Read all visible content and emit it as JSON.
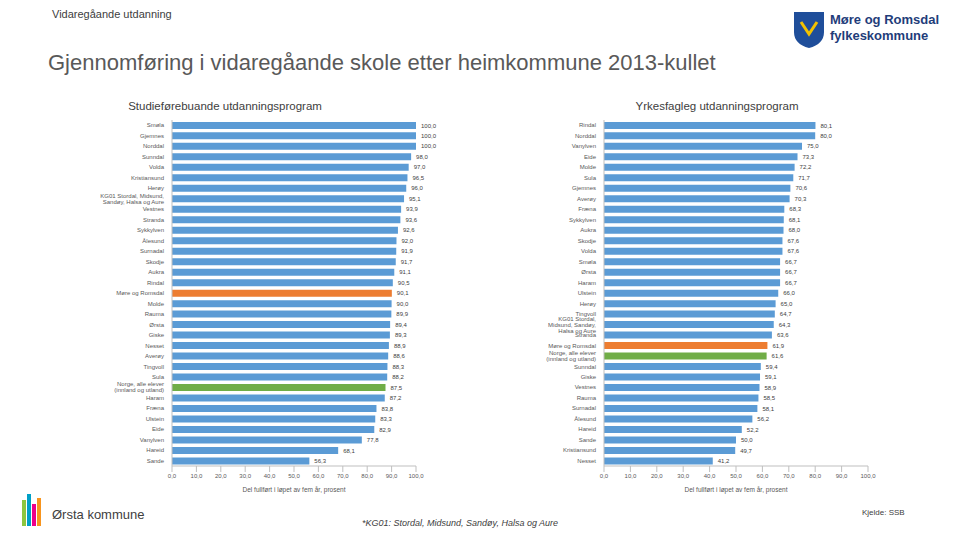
{
  "texts": {
    "section": "Vidaregåande utdanning",
    "title": "Gjennomføring i vidaregåande skole etter heimkommune 2013-kullet",
    "logo": [
      "Møre og Romsdal",
      "fylkeskommune"
    ],
    "municipality": "Ørsta kommune",
    "footnote": "*KG01: Stordal, Midsund, Sandøy, Halsa og Aure",
    "source": "Kjelde: SSB"
  },
  "chart_data": [
    {
      "type": "bar",
      "orientation": "horizontal",
      "title": "Studieførebuande utdanningsprogram",
      "x_label": "Del fullført i løpet av fem år, prosent",
      "data_labels": true,
      "grid": false,
      "categories": [
        "Smøla",
        "Gjemnes",
        "Norddal",
        "Sunndal",
        "Volda",
        "Kristiansund",
        "Herøy",
        "KG01 Stordal, Midsund, Sandøy, Halsa og Aure",
        "Vestnes",
        "Stranda",
        "Sykkylven",
        "Ålesund",
        "Surnadal",
        "Skodje",
        "Aukra",
        "Rindal",
        "Møre og Romsdal",
        "Molde",
        "Rauma",
        "Ørsta",
        "Giske",
        "Nesset",
        "Averøy",
        "Tingvoll",
        "Sula",
        "Norge, alle elever (innland og utland)",
        "Haram",
        "Fræna",
        "Ulstein",
        "Eide",
        "Vanylven",
        "Hareid",
        "Sande"
      ],
      "values": [
        100.0,
        100.0,
        100.0,
        98.0,
        97.0,
        96.5,
        96.0,
        95.1,
        93.9,
        93.6,
        92.6,
        92.0,
        91.9,
        91.7,
        91.1,
        90.5,
        90.1,
        90.0,
        89.9,
        89.4,
        89.3,
        88.9,
        88.6,
        88.3,
        88.2,
        87.5,
        87.2,
        83.8,
        83.3,
        82.9,
        77.8,
        68.1,
        56.3
      ],
      "value_labels": [
        "100,0",
        "100,0",
        "100,0",
        "98,0",
        "97,0",
        "96,5",
        "96,0",
        "95,1",
        "93,9",
        "93,6",
        "92,6",
        "92,0",
        "91,9",
        "91,7",
        "91,1",
        "90,5",
        "90,1",
        "90,0",
        "89,9",
        "89,4",
        "89,3",
        "88,9",
        "88,6",
        "88,3",
        "88,2",
        "87,5",
        "87,2",
        "83,8",
        "83,3",
        "82,9",
        "77,8",
        "68,1",
        "56,3"
      ],
      "colors": [
        "#5b9bd5",
        "#5b9bd5",
        "#5b9bd5",
        "#5b9bd5",
        "#5b9bd5",
        "#5b9bd5",
        "#5b9bd5",
        "#5b9bd5",
        "#5b9bd5",
        "#5b9bd5",
        "#5b9bd5",
        "#5b9bd5",
        "#5b9bd5",
        "#5b9bd5",
        "#5b9bd5",
        "#5b9bd5",
        "#ed7d31",
        "#5b9bd5",
        "#5b9bd5",
        "#5b9bd5",
        "#5b9bd5",
        "#5b9bd5",
        "#5b9bd5",
        "#5b9bd5",
        "#5b9bd5",
        "#70ad47",
        "#5b9bd5",
        "#5b9bd5",
        "#5b9bd5",
        "#5b9bd5",
        "#5b9bd5",
        "#5b9bd5",
        "#5b9bd5"
      ],
      "xlim": [
        0,
        100
      ],
      "xticks": [
        {
          "value": 0,
          "label": "0,0"
        },
        {
          "value": 10,
          "label": "10,0"
        },
        {
          "value": 20,
          "label": "20,0"
        },
        {
          "value": 30,
          "label": "30,0"
        },
        {
          "value": 40,
          "label": "40,0"
        },
        {
          "value": 50,
          "label": "50,0"
        },
        {
          "value": 60,
          "label": "60,0"
        },
        {
          "value": 70,
          "label": "70,0"
        },
        {
          "value": 80,
          "label": "80,0"
        },
        {
          "value": 90,
          "label": "90,0"
        },
        {
          "value": 100,
          "label": "100,0"
        }
      ]
    },
    {
      "type": "bar",
      "orientation": "horizontal",
      "title": "Yrkesfagleg utdanningsprogram",
      "x_label": "Del fullført i løpet av fem år, prosent",
      "data_labels": true,
      "grid": false,
      "categories": [
        "Rindal",
        "Norddal",
        "Vanylven",
        "Eide",
        "Molde",
        "Sula",
        "Gjemnes",
        "Averøy",
        "Fræna",
        "Sykkylven",
        "Aukra",
        "Skodje",
        "Volda",
        "Smøla",
        "Ørsta",
        "Haram",
        "Ulstein",
        "Herøy",
        "Tingvoll",
        "KG01 Stordal, Midsund, Sandøy, Halsa og Aure",
        "Stranda",
        "Møre og Romsdal",
        "Norge, alle elever (innland og utland)",
        "Sunndal",
        "Giske",
        "Vestnes",
        "Rauma",
        "Surnadal",
        "Ålesund",
        "Hareid",
        "Sande",
        "Kristiansund",
        "Nesset"
      ],
      "values": [
        80.1,
        80.0,
        75.0,
        73.3,
        72.2,
        71.7,
        70.6,
        70.3,
        68.3,
        68.1,
        68.0,
        67.6,
        67.6,
        66.7,
        66.7,
        66.7,
        66.0,
        65.0,
        64.7,
        64.3,
        63.6,
        61.9,
        61.6,
        59.4,
        59.1,
        58.9,
        58.5,
        58.1,
        56.2,
        52.2,
        50.0,
        49.7,
        41.2
      ],
      "value_labels": [
        "80,1",
        "80,0",
        "75,0",
        "73,3",
        "72,2",
        "71,7",
        "70,6",
        "70,3",
        "68,3",
        "68,1",
        "68,0",
        "67,6",
        "67,6",
        "66,7",
        "66,7",
        "66,7",
        "66,0",
        "65,0",
        "64,7",
        "64,3",
        "63,6",
        "61,9",
        "61,6",
        "59,4",
        "59,1",
        "58,9",
        "58,5",
        "58,1",
        "56,2",
        "52,2",
        "50,0",
        "49,7",
        "41,2"
      ],
      "colors": [
        "#5b9bd5",
        "#5b9bd5",
        "#5b9bd5",
        "#5b9bd5",
        "#5b9bd5",
        "#5b9bd5",
        "#5b9bd5",
        "#5b9bd5",
        "#5b9bd5",
        "#5b9bd5",
        "#5b9bd5",
        "#5b9bd5",
        "#5b9bd5",
        "#5b9bd5",
        "#5b9bd5",
        "#5b9bd5",
        "#5b9bd5",
        "#5b9bd5",
        "#5b9bd5",
        "#5b9bd5",
        "#5b9bd5",
        "#ed7d31",
        "#70ad47",
        "#5b9bd5",
        "#5b9bd5",
        "#5b9bd5",
        "#5b9bd5",
        "#5b9bd5",
        "#5b9bd5",
        "#5b9bd5",
        "#5b9bd5",
        "#5b9bd5",
        "#5b9bd5"
      ],
      "xlim": [
        0,
        100
      ],
      "xticks": [
        {
          "value": 0,
          "label": "0,0"
        },
        {
          "value": 10,
          "label": "10,0"
        },
        {
          "value": 20,
          "label": "20,0"
        },
        {
          "value": 30,
          "label": "30,0"
        },
        {
          "value": 40,
          "label": "40,0"
        },
        {
          "value": 50,
          "label": "50,0"
        },
        {
          "value": 60,
          "label": "60,0"
        },
        {
          "value": 70,
          "label": "70,0"
        },
        {
          "value": 80,
          "label": "80,0"
        },
        {
          "value": 90,
          "label": "90,0"
        },
        {
          "value": 100,
          "label": "100,0"
        }
      ]
    }
  ]
}
